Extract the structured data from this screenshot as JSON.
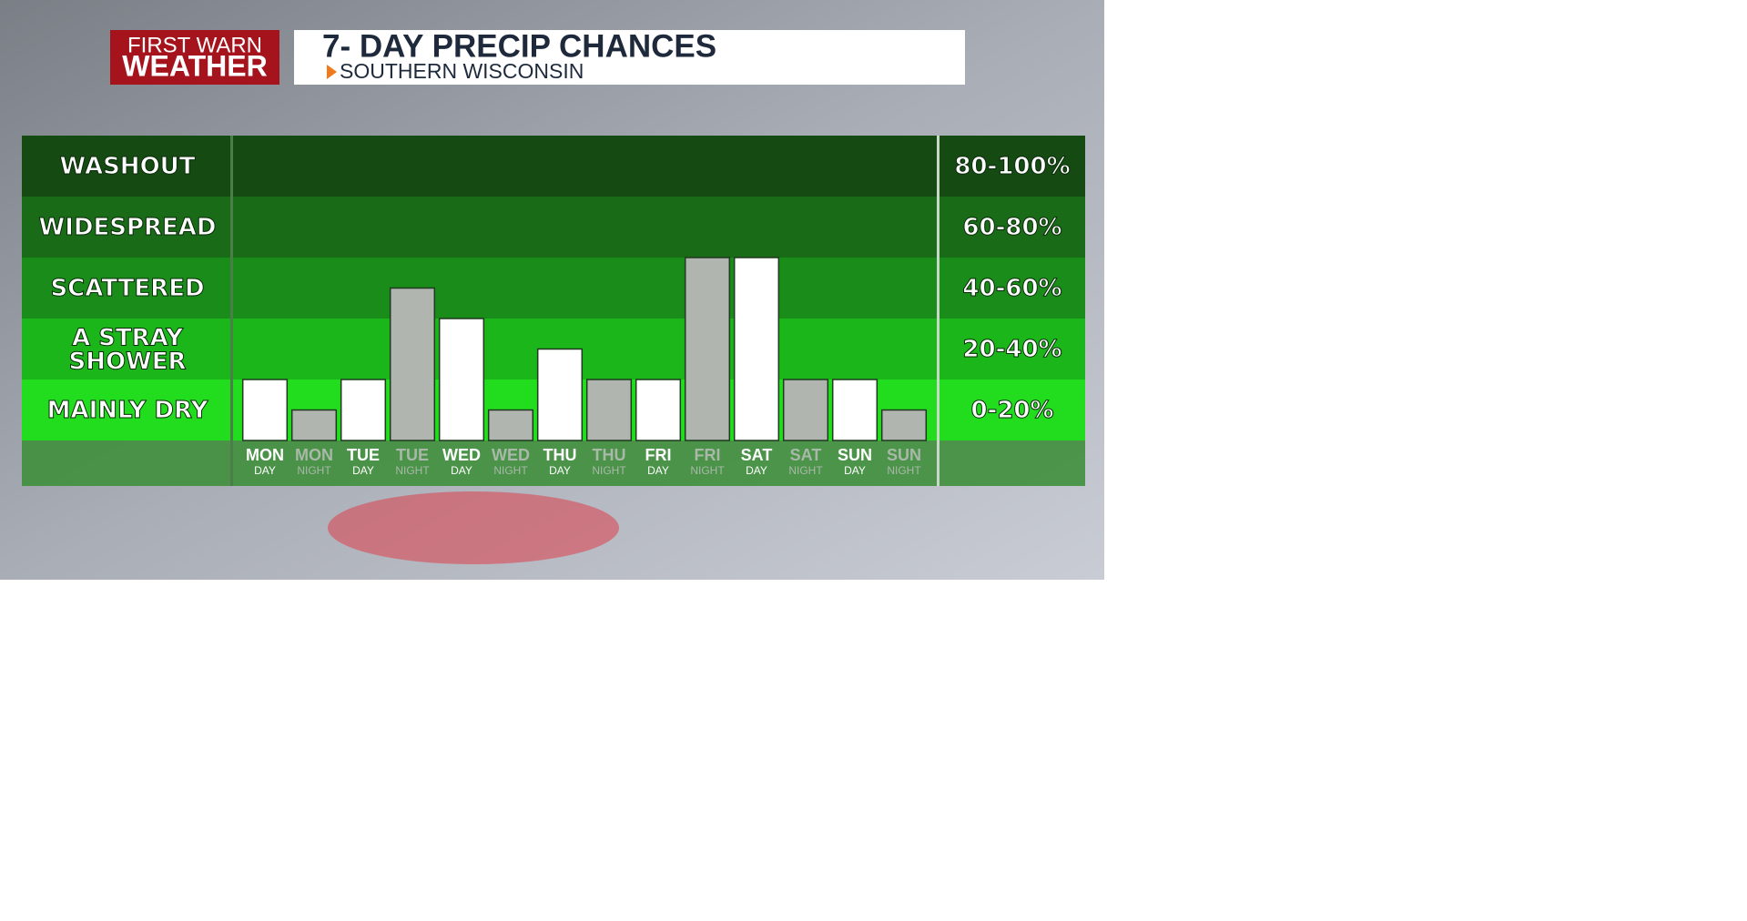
{
  "header": {
    "logo_line1": "FIRST WARN",
    "logo_line2": "WEATHER",
    "title": "7- DAY PRECIP CHANCES",
    "subtitle": "SOUTHERN WISCONSIN"
  },
  "chart_data": {
    "type": "bar",
    "categories": [
      {
        "label": "MON",
        "sublabel": "DAY"
      },
      {
        "label": "MON",
        "sublabel": "NIGHT"
      },
      {
        "label": "TUE",
        "sublabel": "DAY"
      },
      {
        "label": "TUE",
        "sublabel": "NIGHT"
      },
      {
        "label": "WED",
        "sublabel": "DAY"
      },
      {
        "label": "WED",
        "sublabel": "NIGHT"
      },
      {
        "label": "THU",
        "sublabel": "DAY"
      },
      {
        "label": "THU",
        "sublabel": "NIGHT"
      },
      {
        "label": "FRI",
        "sublabel": "DAY"
      },
      {
        "label": "FRI",
        "sublabel": "NIGHT"
      },
      {
        "label": "SAT",
        "sublabel": "DAY"
      },
      {
        "label": "SAT",
        "sublabel": "NIGHT"
      },
      {
        "label": "SUN",
        "sublabel": "DAY"
      },
      {
        "label": "SUN",
        "sublabel": "NIGHT"
      }
    ],
    "values": [
      20,
      10,
      20,
      50,
      40,
      10,
      30,
      20,
      20,
      60,
      60,
      20,
      20,
      10
    ],
    "bar_colors": [
      "#ffffff",
      "#b0b5b0",
      "#ffffff",
      "#b0b5b0",
      "#ffffff",
      "#b0b5b0",
      "#ffffff",
      "#b0b5b0",
      "#ffffff",
      "#b0b5b0",
      "#ffffff",
      "#b0b5b0",
      "#ffffff",
      "#b0b5b0"
    ],
    "label_colors": [
      "#ffffff",
      "#a9b8a9",
      "#ffffff",
      "#a9b8a9",
      "#ffffff",
      "#a9b8a9",
      "#ffffff",
      "#a9b8a9",
      "#ffffff",
      "#a9b8a9",
      "#ffffff",
      "#a9b8a9",
      "#ffffff",
      "#a9b8a9"
    ],
    "ylim": [
      0,
      100
    ],
    "bands": [
      {
        "label": "MAINLY DRY",
        "range": "0-20%",
        "from": 0,
        "to": 20,
        "color": "#22dc1e"
      },
      {
        "label": "A STRAY SHOWER",
        "range": "20-40%",
        "from": 20,
        "to": 40,
        "color": "#1bb61a"
      },
      {
        "label": "SCATTERED",
        "range": "40-60%",
        "from": 40,
        "to": 60,
        "color": "#1a8c1a"
      },
      {
        "label": "WIDESPREAD",
        "range": "60-80%",
        "from": 60,
        "to": 80,
        "color": "#196b18"
      },
      {
        "label": "WASHOUT",
        "range": "80-100%",
        "from": 80,
        "to": 100,
        "color": "#154a13"
      }
    ]
  }
}
